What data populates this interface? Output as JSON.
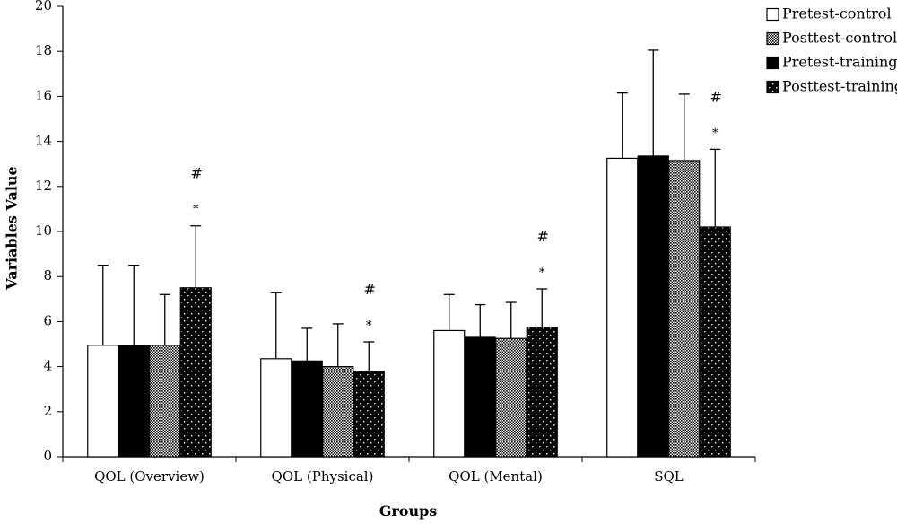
{
  "chart_data": {
    "type": "bar",
    "xlabel": "Groups",
    "ylabel": "Variables Value",
    "ylim": [
      0,
      20
    ],
    "yticks": [
      0,
      2,
      4,
      6,
      8,
      10,
      12,
      14,
      16,
      18,
      20
    ],
    "categories": [
      "QOL (Overview)",
      "QOL (Physical)",
      "QOL (Mental)",
      "SQL"
    ],
    "series": [
      {
        "name": "Pretest-control",
        "pattern": "white",
        "values": [
          4.95,
          4.35,
          5.6,
          13.25
        ],
        "errors": [
          3.55,
          2.95,
          1.6,
          2.9
        ]
      },
      {
        "name": "Pretest-training",
        "pattern": "black",
        "values": [
          4.95,
          4.25,
          5.3,
          13.35
        ],
        "errors": [
          3.55,
          1.45,
          1.45,
          4.7
        ]
      },
      {
        "name": "Posttest-control",
        "pattern": "crosshatch",
        "values": [
          4.95,
          4.0,
          5.25,
          13.15
        ],
        "errors": [
          2.25,
          1.9,
          1.6,
          2.95
        ]
      },
      {
        "name": "Posttest-training",
        "pattern": "dots",
        "values": [
          7.5,
          3.8,
          5.75,
          10.2
        ],
        "errors": [
          2.75,
          1.3,
          1.7,
          3.45
        ]
      }
    ],
    "legend": {
      "position": "top-right",
      "order": [
        "Pretest-control",
        "Posttest-control",
        "Pretest-training",
        "Posttest-training"
      ]
    },
    "annotations": {
      "hash": "#",
      "star": "*"
    },
    "colors": {
      "black": "#000000",
      "white": "#ffffff"
    },
    "grid": false
  }
}
